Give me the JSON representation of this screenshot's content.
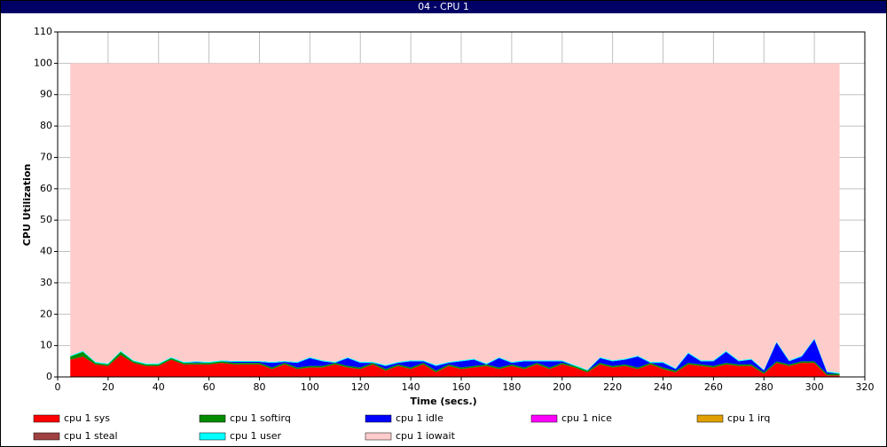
{
  "chart_data": {
    "type": "stacked-area",
    "title": "04 - CPU 1",
    "xlabel": "Time (secs.)",
    "ylabel": "CPU Utilization",
    "x": [
      5,
      10,
      15,
      20,
      25,
      30,
      35,
      40,
      45,
      50,
      55,
      60,
      65,
      70,
      75,
      80,
      85,
      90,
      95,
      100,
      105,
      110,
      115,
      120,
      125,
      130,
      135,
      140,
      145,
      150,
      155,
      160,
      165,
      170,
      175,
      180,
      185,
      190,
      195,
      200,
      205,
      210,
      215,
      220,
      225,
      230,
      235,
      240,
      245,
      250,
      255,
      260,
      265,
      270,
      275,
      280,
      285,
      290,
      295,
      300,
      305,
      310
    ],
    "xlim": [
      0,
      320
    ],
    "xticks": [
      0,
      20,
      40,
      60,
      80,
      100,
      120,
      140,
      160,
      180,
      200,
      220,
      240,
      260,
      280,
      300,
      320
    ],
    "ylim": [
      0,
      110
    ],
    "yticks": [
      0,
      10,
      20,
      30,
      40,
      50,
      60,
      70,
      80,
      90,
      100,
      110
    ],
    "grid": true,
    "series": [
      {
        "name": "cpu 1 sys",
        "color": "#ff0000",
        "values": [
          5.5,
          6.5,
          4,
          3.5,
          7,
          4.5,
          3.5,
          3.5,
          5.5,
          4,
          4,
          4,
          4.5,
          4,
          4,
          4,
          2.5,
          4,
          2.5,
          3,
          3,
          4,
          3,
          2.5,
          4,
          2,
          3.5,
          2.5,
          4,
          1.5,
          3.5,
          2.5,
          3,
          3.5,
          2.5,
          3.5,
          2.5,
          4,
          2.5,
          4,
          3,
          1.5,
          4,
          3,
          3.5,
          2.5,
          4,
          2.5,
          1.5,
          4,
          3.5,
          3,
          4,
          3.5,
          3.5,
          1,
          4.5,
          3.5,
          4.5,
          4.5,
          0.5,
          0.5
        ]
      },
      {
        "name": "cpu 1 softirq",
        "color": "#008c00",
        "values": [
          1,
          1.5,
          0.5,
          0.5,
          1,
          0.5,
          0.5,
          0.5,
          0.5,
          0.5,
          0.5,
          0.5,
          0.5,
          0.5,
          0.5,
          0.5,
          0.5,
          0.5,
          0.5,
          0.5,
          0.5,
          0.5,
          0.5,
          0.5,
          0.5,
          0.5,
          0.5,
          0.5,
          0.5,
          0.5,
          0.5,
          0.5,
          0.5,
          0.5,
          0.5,
          0.5,
          0.5,
          0.5,
          0.5,
          0.5,
          0.5,
          0.5,
          0.5,
          0.5,
          0.5,
          0.5,
          0.5,
          0.5,
          0.5,
          0.5,
          0.5,
          0.5,
          0.5,
          0.5,
          0.5,
          0.5,
          0.5,
          0.5,
          0.5,
          0.5,
          0.5,
          0.5
        ]
      },
      {
        "name": "cpu 1 idle",
        "color": "#0000ff",
        "values": [
          0,
          0,
          0,
          0,
          0,
          0,
          0,
          0,
          0,
          0,
          0.2,
          0,
          0,
          0.3,
          0.3,
          0.3,
          1.5,
          0.3,
          1.5,
          2.5,
          1.5,
          0,
          2.5,
          1.5,
          0,
          1,
          0.5,
          2,
          0.5,
          1.5,
          0.5,
          2,
          2,
          0,
          3,
          0.5,
          2,
          0.5,
          2,
          0.5,
          0,
          0,
          1.5,
          1.5,
          1.5,
          3.5,
          0,
          1.5,
          0.5,
          3,
          1,
          1.5,
          3.5,
          1,
          1.5,
          0.5,
          6,
          1,
          1.5,
          7,
          0.5,
          0
        ]
      },
      {
        "name": "cpu 1 nice",
        "color": "#ff00ff",
        "values": [
          0,
          0,
          0,
          0,
          0,
          0,
          0,
          0,
          0,
          0,
          0,
          0,
          0,
          0,
          0,
          0,
          0,
          0,
          0,
          0,
          0,
          0,
          0,
          0,
          0,
          0,
          0,
          0,
          0,
          0,
          0,
          0,
          0,
          0,
          0,
          0,
          0,
          0,
          0,
          0,
          0,
          0,
          0,
          0,
          0,
          0,
          0,
          0,
          0,
          0,
          0,
          0,
          0,
          0,
          0,
          0,
          0,
          0,
          0,
          0,
          0,
          0
        ]
      },
      {
        "name": "cpu 1 irq",
        "color": "#e0a000",
        "values": [
          0,
          0,
          0,
          0,
          0,
          0,
          0,
          0,
          0,
          0,
          0,
          0,
          0,
          0,
          0,
          0,
          0,
          0,
          0,
          0,
          0,
          0,
          0,
          0,
          0,
          0,
          0,
          0,
          0,
          0,
          0,
          0,
          0,
          0,
          0,
          0,
          0,
          0,
          0,
          0,
          0,
          0,
          0,
          0,
          0,
          0,
          0,
          0,
          0,
          0,
          0,
          0,
          0,
          0,
          0,
          0,
          0,
          0,
          0,
          0,
          0,
          0
        ]
      },
      {
        "name": "cpu 1 steal",
        "color": "#a04040",
        "values": [
          0,
          0,
          0,
          0,
          0,
          0,
          0,
          0,
          0,
          0,
          0,
          0,
          0,
          0,
          0,
          0,
          0,
          0,
          0,
          0,
          0,
          0,
          0,
          0,
          0,
          0,
          0,
          0,
          0,
          0,
          0,
          0,
          0,
          0,
          0,
          0,
          0,
          0,
          0,
          0,
          0,
          0,
          0,
          0,
          0,
          0,
          0,
          0,
          0,
          0,
          0,
          0,
          0,
          0,
          0,
          0,
          0,
          0,
          0,
          0,
          0,
          0
        ]
      },
      {
        "name": "cpu 1 user",
        "color": "#00ffff",
        "values": [
          0.3,
          0.3,
          0.3,
          0.3,
          0.3,
          0.3,
          0.3,
          0.3,
          0.3,
          0.3,
          0.3,
          0.3,
          0.3,
          0.3,
          0.3,
          0.3,
          0.3,
          0.3,
          0.3,
          0.3,
          0.3,
          0.3,
          0.3,
          0.3,
          0.3,
          0.3,
          0.3,
          0.3,
          0.3,
          0.3,
          0.3,
          0.3,
          0.3,
          0.3,
          0.3,
          0.3,
          0.3,
          0.3,
          0.3,
          0.3,
          0.3,
          0.3,
          0.3,
          0.3,
          0.3,
          0.3,
          0.3,
          0.3,
          0.3,
          0.3,
          0.3,
          0.3,
          0.3,
          0.3,
          0.3,
          0.3,
          0.3,
          0.3,
          0.3,
          0.3,
          0.3,
          0.3
        ]
      },
      {
        "name": "cpu 1 iowait",
        "color": "#ffcccc",
        "values": [
          93.2,
          91.7,
          95.2,
          95.7,
          91.7,
          94.7,
          95.7,
          95.7,
          93.7,
          95.2,
          95.0,
          95.2,
          94.7,
          94.9,
          94.9,
          94.9,
          95.2,
          94.9,
          95.2,
          93.7,
          94.7,
          95.2,
          93.7,
          95.2,
          95.2,
          96.2,
          95.2,
          94.7,
          94.7,
          96.2,
          95.2,
          94.7,
          94.2,
          95.7,
          93.7,
          95.2,
          94.7,
          94.7,
          94.7,
          94.7,
          96.2,
          97.7,
          93.7,
          94.7,
          94.2,
          93.2,
          95.2,
          95.2,
          97.2,
          92.2,
          94.7,
          94.7,
          91.7,
          94.7,
          94.2,
          97.7,
          88.7,
          94.7,
          93.2,
          87.7,
          98.2,
          98.7
        ]
      }
    ]
  }
}
